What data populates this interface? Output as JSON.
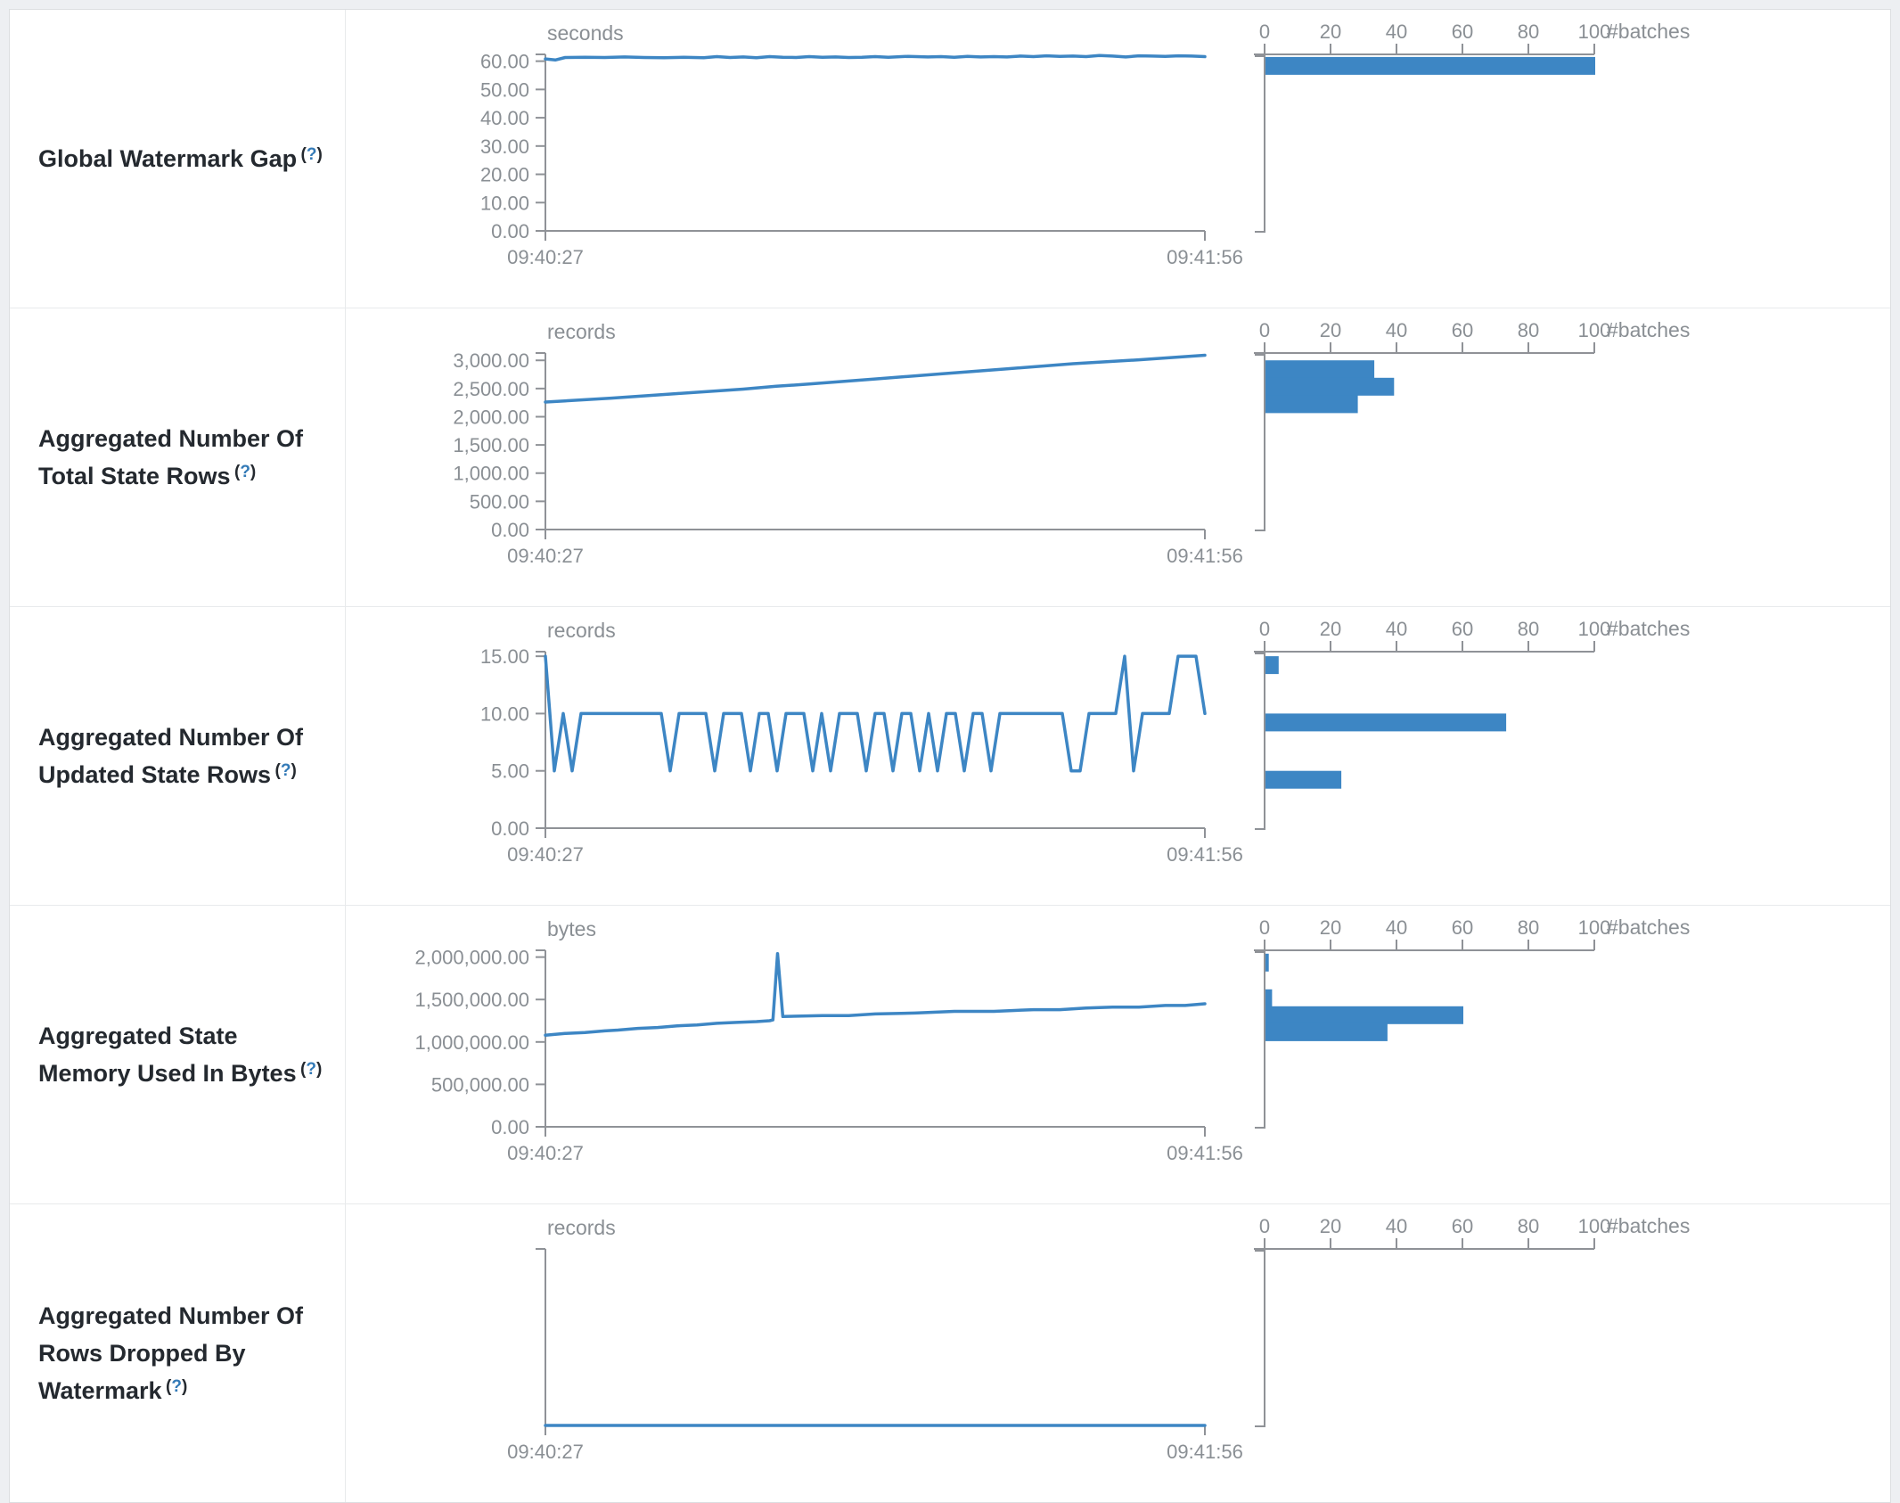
{
  "colors": {
    "accent_blue": "#3d86c4",
    "axis_gray": "#8f9297",
    "tick_label_gray": "#8a8f94",
    "title_text": "#24292f",
    "link_blue": "#337ab7",
    "page_bg": "#edeff2",
    "row_bg": "#ffffff",
    "border_gray": "#e8eaec"
  },
  "rows": [
    {
      "id": "global-watermark-gap",
      "title": "Global Watermark Gap",
      "help": {
        "open": "(",
        "q": "?",
        "close": ")"
      },
      "timeline": {
        "type": "line",
        "unit": "seconds",
        "x_start": "09:40:27",
        "x_end": "09:41:56",
        "y_top_value": 62.4,
        "y_ticks": [
          {
            "v": 60,
            "label": "60.00"
          },
          {
            "v": 50,
            "label": "50.00"
          },
          {
            "v": 40,
            "label": "40.00"
          },
          {
            "v": 30,
            "label": "30.00"
          },
          {
            "v": 20,
            "label": "20.00"
          },
          {
            "v": 10,
            "label": "10.00"
          },
          {
            "v": 0,
            "label": "0.00"
          }
        ],
        "points": [
          [
            0,
            60.8
          ],
          [
            0.015,
            60.4
          ],
          [
            0.03,
            61.3
          ],
          [
            0.06,
            61.4
          ],
          [
            0.09,
            61.3
          ],
          [
            0.12,
            61.5
          ],
          [
            0.15,
            61.3
          ],
          [
            0.18,
            61.2
          ],
          [
            0.21,
            61.4
          ],
          [
            0.24,
            61.2
          ],
          [
            0.26,
            61.6
          ],
          [
            0.28,
            61.3
          ],
          [
            0.3,
            61.5
          ],
          [
            0.32,
            61.2
          ],
          [
            0.34,
            61.6
          ],
          [
            0.36,
            61.4
          ],
          [
            0.38,
            61.3
          ],
          [
            0.4,
            61.6
          ],
          [
            0.42,
            61.4
          ],
          [
            0.44,
            61.5
          ],
          [
            0.46,
            61.3
          ],
          [
            0.48,
            61.4
          ],
          [
            0.5,
            61.6
          ],
          [
            0.52,
            61.4
          ],
          [
            0.55,
            61.7
          ],
          [
            0.58,
            61.5
          ],
          [
            0.6,
            61.6
          ],
          [
            0.62,
            61.4
          ],
          [
            0.64,
            61.7
          ],
          [
            0.66,
            61.5
          ],
          [
            0.68,
            61.6
          ],
          [
            0.7,
            61.5
          ],
          [
            0.72,
            61.8
          ],
          [
            0.74,
            61.6
          ],
          [
            0.76,
            61.9
          ],
          [
            0.78,
            61.7
          ],
          [
            0.8,
            61.8
          ],
          [
            0.82,
            61.6
          ],
          [
            0.84,
            62.0
          ],
          [
            0.86,
            61.8
          ],
          [
            0.88,
            61.5
          ],
          [
            0.9,
            61.9
          ],
          [
            0.92,
            61.8
          ],
          [
            0.94,
            61.7
          ],
          [
            0.96,
            61.9
          ],
          [
            0.98,
            61.8
          ],
          [
            1,
            61.6
          ]
        ]
      },
      "histogram": {
        "type": "bar",
        "unit": "#batches",
        "ticks": [
          0,
          20,
          40,
          60,
          80,
          100
        ],
        "bars": [
          {
            "value_bin": 61.5,
            "count": 100
          }
        ]
      }
    },
    {
      "id": "total-state-rows",
      "title": "Aggregated Number Of Total State Rows",
      "help": {
        "open": "(",
        "q": "?",
        "close": ")"
      },
      "timeline": {
        "type": "line",
        "unit": "records",
        "x_start": "09:40:27",
        "x_end": "09:41:56",
        "y_top_value": 3130,
        "y_ticks": [
          {
            "v": 3000,
            "label": "3,000.00"
          },
          {
            "v": 2500,
            "label": "2,500.00"
          },
          {
            "v": 2000,
            "label": "2,000.00"
          },
          {
            "v": 1500,
            "label": "1,500.00"
          },
          {
            "v": 1000,
            "label": "1,000.00"
          },
          {
            "v": 500,
            "label": "500.00"
          },
          {
            "v": 0,
            "label": "0.00"
          }
        ],
        "points": [
          [
            0,
            2260
          ],
          [
            0.1,
            2330
          ],
          [
            0.2,
            2410
          ],
          [
            0.3,
            2490
          ],
          [
            0.35,
            2540
          ],
          [
            0.4,
            2580
          ],
          [
            0.5,
            2670
          ],
          [
            0.6,
            2760
          ],
          [
            0.7,
            2850
          ],
          [
            0.8,
            2940
          ],
          [
            0.9,
            3010
          ],
          [
            1,
            3090
          ]
        ]
      },
      "histogram": {
        "type": "bar",
        "unit": "#batches",
        "ticks": [
          0,
          20,
          40,
          60,
          80,
          100
        ],
        "bars": [
          {
            "value_bin": 3000,
            "count": 33
          },
          {
            "value_bin": 2690,
            "count": 39
          },
          {
            "value_bin": 2380,
            "count": 28
          }
        ]
      }
    },
    {
      "id": "updated-state-rows",
      "title": "Aggregated Number Of Updated State Rows",
      "help": {
        "open": "(",
        "q": "?",
        "close": ")"
      },
      "timeline": {
        "type": "line",
        "unit": "records",
        "x_start": "09:40:27",
        "x_end": "09:41:56",
        "y_top_value": 15.4,
        "y_ticks": [
          {
            "v": 15,
            "label": "15.00"
          },
          {
            "v": 10,
            "label": "10.00"
          },
          {
            "v": 5,
            "label": "5.00"
          },
          {
            "v": 0,
            "label": "0.00"
          }
        ],
        "values": [
          15,
          5,
          10,
          5,
          10,
          10,
          10,
          10,
          10,
          10,
          10,
          10,
          10,
          10,
          5,
          10,
          10,
          10,
          10,
          5,
          10,
          10,
          10,
          5,
          10,
          10,
          5,
          10,
          10,
          10,
          5,
          10,
          5,
          10,
          10,
          10,
          5,
          10,
          10,
          5,
          10,
          10,
          5,
          10,
          5,
          10,
          10,
          5,
          10,
          10,
          5,
          10,
          10,
          10,
          10,
          10,
          10,
          10,
          10,
          5,
          5,
          10,
          10,
          10,
          10,
          15,
          5,
          10,
          10,
          10,
          10,
          15,
          15,
          15,
          10
        ]
      },
      "histogram": {
        "type": "bar",
        "unit": "#batches",
        "ticks": [
          0,
          20,
          40,
          60,
          80,
          100
        ],
        "bars": [
          {
            "value_bin": 15,
            "count": 4
          },
          {
            "value_bin": 10,
            "count": 73
          },
          {
            "value_bin": 5,
            "count": 23
          }
        ]
      }
    },
    {
      "id": "state-memory-used",
      "title": "Aggregated State Memory Used In Bytes",
      "help": {
        "open": "(",
        "q": "?",
        "close": ")"
      },
      "timeline": {
        "type": "line",
        "unit": "bytes",
        "x_start": "09:40:27",
        "x_end": "09:41:56",
        "y_top_value": 2080000,
        "y_ticks": [
          {
            "v": 2000000,
            "label": "2,000,000.00"
          },
          {
            "v": 1500000,
            "label": "1,500,000.00"
          },
          {
            "v": 1000000,
            "label": "1,000,000.00"
          },
          {
            "v": 500000,
            "label": "500,000.00"
          },
          {
            "v": 0,
            "label": "0.00"
          }
        ],
        "points": [
          [
            0,
            1080000
          ],
          [
            0.03,
            1100000
          ],
          [
            0.06,
            1110000
          ],
          [
            0.09,
            1130000
          ],
          [
            0.11,
            1140000
          ],
          [
            0.14,
            1160000
          ],
          [
            0.17,
            1170000
          ],
          [
            0.2,
            1190000
          ],
          [
            0.23,
            1200000
          ],
          [
            0.26,
            1220000
          ],
          [
            0.29,
            1230000
          ],
          [
            0.32,
            1240000
          ],
          [
            0.34,
            1250000
          ],
          [
            0.345,
            1260000
          ],
          [
            0.352,
            2040000
          ],
          [
            0.36,
            1300000
          ],
          [
            0.42,
            1310000
          ],
          [
            0.46,
            1310000
          ],
          [
            0.5,
            1330000
          ],
          [
            0.56,
            1340000
          ],
          [
            0.62,
            1360000
          ],
          [
            0.68,
            1360000
          ],
          [
            0.74,
            1380000
          ],
          [
            0.78,
            1380000
          ],
          [
            0.82,
            1400000
          ],
          [
            0.86,
            1410000
          ],
          [
            0.9,
            1410000
          ],
          [
            0.94,
            1430000
          ],
          [
            0.97,
            1430000
          ],
          [
            1,
            1450000
          ]
        ]
      },
      "histogram": {
        "type": "bar",
        "unit": "#batches",
        "ticks": [
          0,
          20,
          40,
          60,
          80,
          100
        ],
        "bars": [
          {
            "value_bin": 2040000,
            "count": 1
          },
          {
            "value_bin": 1620000,
            "count": 2
          },
          {
            "value_bin": 1420000,
            "count": 60
          },
          {
            "value_bin": 1220000,
            "count": 37
          }
        ]
      }
    },
    {
      "id": "rows-dropped-by-watermark",
      "title": "Aggregated Number Of Rows Dropped By Watermark",
      "help": {
        "open": "(",
        "q": "?",
        "close": ")"
      },
      "timeline": {
        "type": "line",
        "unit": "records",
        "x_start": "09:40:27",
        "x_end": "09:41:56",
        "y_top_value": 1,
        "y_ticks": [],
        "points": [
          [
            0,
            0
          ],
          [
            1,
            0
          ]
        ]
      },
      "histogram": {
        "type": "bar",
        "unit": "#batches",
        "ticks": [
          0,
          20,
          40,
          60,
          80,
          100
        ],
        "bars": []
      }
    }
  ]
}
